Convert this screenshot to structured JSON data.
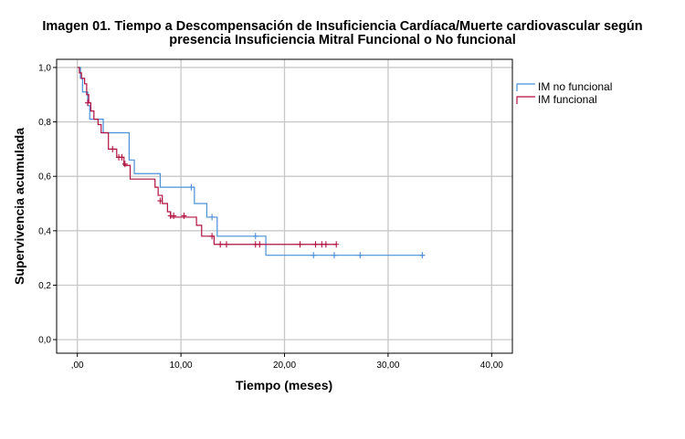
{
  "chart_data": {
    "type": "line",
    "subtype": "kaplan-meier-step",
    "title_line1": "Imagen 01. Tiempo a Descompensación de Insuficiencia Cardíaca/Muerte cardiovascular según",
    "title_line2": "presencia Insuficiencia Mitral Funcional o No funcional",
    "xlabel": "Tiempo (meses)",
    "ylabel": "Supervivencia acumulada",
    "xlim": [
      -2,
      42
    ],
    "ylim": [
      -0.05,
      1.03
    ],
    "x_ticks": [
      0,
      10,
      20,
      30,
      40
    ],
    "x_tick_labels": [
      ",00",
      "10,00",
      "20,00",
      "30,00",
      "40,00"
    ],
    "y_ticks": [
      0,
      0.2,
      0.4,
      0.6,
      0.8,
      1.0
    ],
    "y_tick_labels": [
      "0,0",
      "0,2",
      "0,4",
      "0,6",
      "0,8",
      "1,0"
    ],
    "grid": true,
    "legend_position": "top-right",
    "series": [
      {
        "name": "IM no funcional",
        "color": "#4a90d9",
        "steps": [
          [
            0,
            1.0
          ],
          [
            0.3,
            0.96
          ],
          [
            0.5,
            0.91
          ],
          [
            1.0,
            0.86
          ],
          [
            1.2,
            0.81
          ],
          [
            2.5,
            0.76
          ],
          [
            5.0,
            0.66
          ],
          [
            5.5,
            0.61
          ],
          [
            8.0,
            0.56
          ],
          [
            11.3,
            0.5
          ],
          [
            12.5,
            0.45
          ],
          [
            13.5,
            0.38
          ],
          [
            18.2,
            0.31
          ],
          [
            33.5,
            0.31
          ]
        ],
        "censored": [
          [
            11.0,
            0.56
          ],
          [
            13.0,
            0.45
          ],
          [
            17.2,
            0.38
          ],
          [
            22.8,
            0.31
          ],
          [
            24.8,
            0.31
          ],
          [
            27.3,
            0.31
          ],
          [
            33.3,
            0.31
          ]
        ]
      },
      {
        "name": "IM funcional",
        "color": "#b0123f",
        "steps": [
          [
            0,
            1.0
          ],
          [
            0.2,
            0.98
          ],
          [
            0.4,
            0.96
          ],
          [
            0.7,
            0.94
          ],
          [
            0.9,
            0.9
          ],
          [
            1.1,
            0.87
          ],
          [
            1.3,
            0.84
          ],
          [
            1.6,
            0.81
          ],
          [
            2.0,
            0.79
          ],
          [
            2.3,
            0.76
          ],
          [
            3.0,
            0.7
          ],
          [
            3.8,
            0.67
          ],
          [
            4.5,
            0.64
          ],
          [
            5.1,
            0.59
          ],
          [
            7.5,
            0.56
          ],
          [
            7.8,
            0.53
          ],
          [
            8.2,
            0.5
          ],
          [
            8.7,
            0.47
          ],
          [
            9.0,
            0.45
          ],
          [
            11.5,
            0.42
          ],
          [
            12.0,
            0.38
          ],
          [
            13.2,
            0.35
          ],
          [
            25.0,
            0.35
          ]
        ],
        "censored": [
          [
            1.0,
            0.87
          ],
          [
            3.4,
            0.7
          ],
          [
            4.0,
            0.67
          ],
          [
            4.3,
            0.67
          ],
          [
            4.6,
            0.645
          ],
          [
            8.0,
            0.51
          ],
          [
            9.0,
            0.455
          ],
          [
            9.3,
            0.455
          ],
          [
            10.3,
            0.455
          ],
          [
            13.0,
            0.38
          ],
          [
            13.8,
            0.35
          ],
          [
            14.4,
            0.35
          ],
          [
            17.2,
            0.35
          ],
          [
            17.6,
            0.35
          ],
          [
            21.5,
            0.35
          ],
          [
            23.0,
            0.35
          ],
          [
            23.6,
            0.35
          ],
          [
            24.0,
            0.35
          ],
          [
            25.0,
            0.35
          ]
        ]
      }
    ]
  }
}
